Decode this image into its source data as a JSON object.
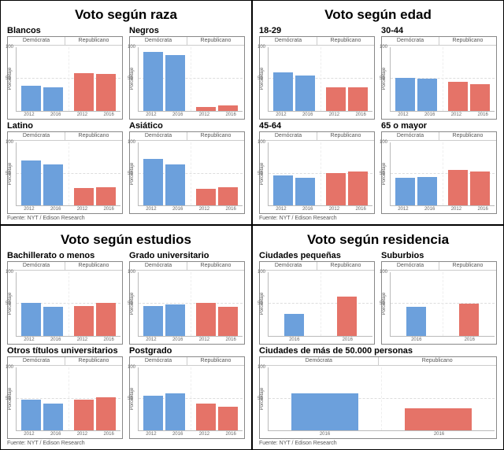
{
  "colors": {
    "dem": "#6ca0dc",
    "rep": "#e57368",
    "axis": "#bbbbbb",
    "border": "#888888",
    "bg": "#ffffff"
  },
  "ylabel": "Porcentaje",
  "ylim": [
    0,
    100
  ],
  "yticks": [
    50,
    100
  ],
  "xticks_2bar": [
    "2012",
    "2016"
  ],
  "xticks_1bar": [
    "2016"
  ],
  "legend": {
    "dem": "Demócrata",
    "rep": "Republicano"
  },
  "source": "Fuente: NYT / Edison Research",
  "quadrants": [
    {
      "title": "Voto según raza",
      "title_fontsize": 17,
      "layout": "2x2",
      "panels": [
        {
          "title": "Blancos",
          "groups": 2,
          "dem": [
            39,
            37
          ],
          "rep": [
            59,
            58
          ]
        },
        {
          "title": "Negros",
          "groups": 2,
          "dem": [
            93,
            88
          ],
          "rep": [
            6,
            8
          ]
        },
        {
          "title": "Latino",
          "groups": 2,
          "dem": [
            71,
            65
          ],
          "rep": [
            27,
            29
          ]
        },
        {
          "title": "Asiático",
          "groups": 2,
          "dem": [
            73,
            65
          ],
          "rep": [
            26,
            29
          ]
        }
      ]
    },
    {
      "title": "Voto según edad",
      "title_fontsize": 17,
      "layout": "2x2",
      "panels": [
        {
          "title": "18-29",
          "groups": 2,
          "dem": [
            60,
            55
          ],
          "rep": [
            37,
            37
          ]
        },
        {
          "title": "30-44",
          "groups": 2,
          "dem": [
            52,
            50
          ],
          "rep": [
            45,
            42
          ]
        },
        {
          "title": "45-64",
          "groups": 2,
          "dem": [
            47,
            44
          ],
          "rep": [
            51,
            53
          ]
        },
        {
          "title": "65 o mayor",
          "groups": 2,
          "dem": [
            44,
            45
          ],
          "rep": [
            56,
            53
          ]
        }
      ]
    },
    {
      "title": "Voto según estudios",
      "title_fontsize": 17,
      "layout": "2x2",
      "panels": [
        {
          "title": "Bachillerato o menos",
          "groups": 2,
          "dem": [
            51,
            45
          ],
          "rep": [
            47,
            51
          ]
        },
        {
          "title": "Grado universitario",
          "groups": 2,
          "dem": [
            47,
            49
          ],
          "rep": [
            51,
            45
          ]
        },
        {
          "title": "Otros títulos universitarios",
          "groups": 2,
          "dem": [
            49,
            42
          ],
          "rep": [
            48,
            52
          ]
        },
        {
          "title": "Postgrado",
          "groups": 2,
          "dem": [
            55,
            58
          ],
          "rep": [
            42,
            37
          ]
        }
      ]
    },
    {
      "title": "Voto según residencia",
      "title_fontsize": 17,
      "layout": "2plus1",
      "panels": [
        {
          "title": "Ciudades pequeñas",
          "groups": 1,
          "dem": [
            34
          ],
          "rep": [
            62
          ]
        },
        {
          "title": "Suburbios",
          "groups": 1,
          "dem": [
            45
          ],
          "rep": [
            50
          ]
        },
        {
          "title": "Ciudades de más de 50.000 personas",
          "wide": true,
          "groups": 1,
          "dem": [
            59
          ],
          "rep": [
            35
          ]
        }
      ]
    }
  ]
}
